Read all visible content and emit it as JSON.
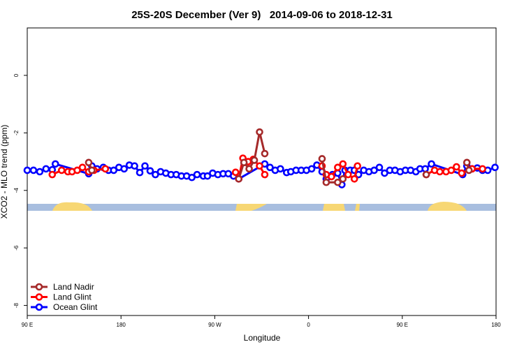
{
  "chart_data": {
    "type": "line",
    "title": "25S-20S December (Ver 9)   2014-09-06 to 2018-12-31",
    "x_label": "Longitude",
    "y_label": "XCO2 - MLO trend (ppm)",
    "xlim": [
      90,
      540
    ],
    "ylim": [
      -8.35,
      1.65
    ],
    "xticks": [
      {
        "value": 90,
        "label": "90 E"
      },
      {
        "value": 180,
        "label": "180"
      },
      {
        "value": 270,
        "label": "90 W"
      },
      {
        "value": 360,
        "label": "0"
      },
      {
        "value": 450,
        "label": "90 E"
      },
      {
        "value": 540,
        "label": "180"
      }
    ],
    "yticks": [
      0,
      -2,
      -4,
      -6,
      -8
    ],
    "grid": false,
    "legend": "bottomleft",
    "series": [
      {
        "name": "Land Nadir",
        "color": "#a52a2a",
        "x": [
          149,
          152,
          220,
          293,
          298,
          303,
          308,
          313,
          318,
          345,
          373,
          377,
          388,
          393,
          430,
          473,
          490,
          512,
          514
        ],
        "values": [
          -3.03,
          -3.3,
          null,
          -3.6,
          -3.03,
          -3.25,
          -2.95,
          -1.97,
          -2.72,
          null,
          -2.9,
          -3.72,
          -3.72,
          -3.6,
          null,
          -3.45,
          null,
          -3.03,
          -3.3
        ]
      },
      {
        "name": "Land Glint",
        "color": "#ff0000",
        "x": [
          114,
          123,
          129,
          133,
          138,
          143,
          149,
          154,
          165,
          230,
          290,
          293,
          297,
          302,
          307,
          313,
          318,
          345,
          373,
          377,
          382,
          388,
          393,
          398,
          404,
          407,
          440,
          473,
          481,
          486,
          492,
          497,
          502,
          507,
          517,
          527
        ],
        "values": [
          -3.45,
          -3.3,
          -3.35,
          -3.35,
          -3.3,
          -3.2,
          -3.35,
          -3.3,
          -3.25,
          null,
          -3.37,
          -3.6,
          -2.88,
          -3.0,
          -2.92,
          -3.15,
          -3.45,
          null,
          -3.15,
          -3.45,
          -3.52,
          -3.2,
          -3.08,
          -3.45,
          -3.6,
          -3.15,
          null,
          -3.45,
          -3.3,
          -3.35,
          -3.35,
          -3.3,
          -3.18,
          -3.4,
          -3.25,
          -3.25
        ]
      },
      {
        "name": "Ocean Glint",
        "color": "#0000ff",
        "x": [
          90,
          96,
          102,
          108,
          114,
          117,
          149,
          152,
          157,
          163,
          168,
          173,
          178,
          183,
          188,
          193,
          198,
          203,
          208,
          213,
          218,
          223,
          228,
          233,
          238,
          243,
          248,
          253,
          259,
          263,
          268,
          273,
          278,
          283,
          288,
          293,
          318,
          323,
          328,
          333,
          339,
          343,
          348,
          353,
          358,
          363,
          368,
          373,
          377,
          383,
          388,
          392,
          395,
          400,
          404,
          408,
          413,
          418,
          423,
          428,
          433,
          438,
          443,
          448,
          453,
          458,
          463,
          467,
          472,
          478,
          508,
          512,
          517,
          522,
          527,
          532,
          539
        ],
        "values": [
          -3.3,
          -3.3,
          -3.35,
          -3.25,
          -3.28,
          -3.08,
          -3.42,
          -3.15,
          -3.25,
          -3.2,
          -3.3,
          -3.3,
          -3.2,
          -3.25,
          -3.12,
          -3.15,
          -3.38,
          -3.15,
          -3.32,
          -3.45,
          -3.35,
          -3.4,
          -3.45,
          -3.45,
          -3.5,
          -3.5,
          -3.55,
          -3.45,
          -3.5,
          -3.5,
          -3.4,
          -3.45,
          -3.42,
          -3.42,
          -3.5,
          -3.6,
          -3.08,
          -3.2,
          -3.3,
          -3.25,
          -3.38,
          -3.35,
          -3.3,
          -3.3,
          -3.3,
          -3.25,
          -3.12,
          -3.35,
          -3.6,
          -3.45,
          -3.4,
          -3.8,
          -3.3,
          -3.3,
          -3.3,
          -3.45,
          -3.3,
          -3.35,
          -3.3,
          -3.2,
          -3.4,
          -3.3,
          -3.3,
          -3.35,
          -3.3,
          -3.3,
          -3.35,
          -3.25,
          -3.25,
          -3.08,
          -3.45,
          -3.15,
          -3.25,
          -3.22,
          -3.3,
          -3.3,
          -3.2
        ]
      }
    ]
  }
}
